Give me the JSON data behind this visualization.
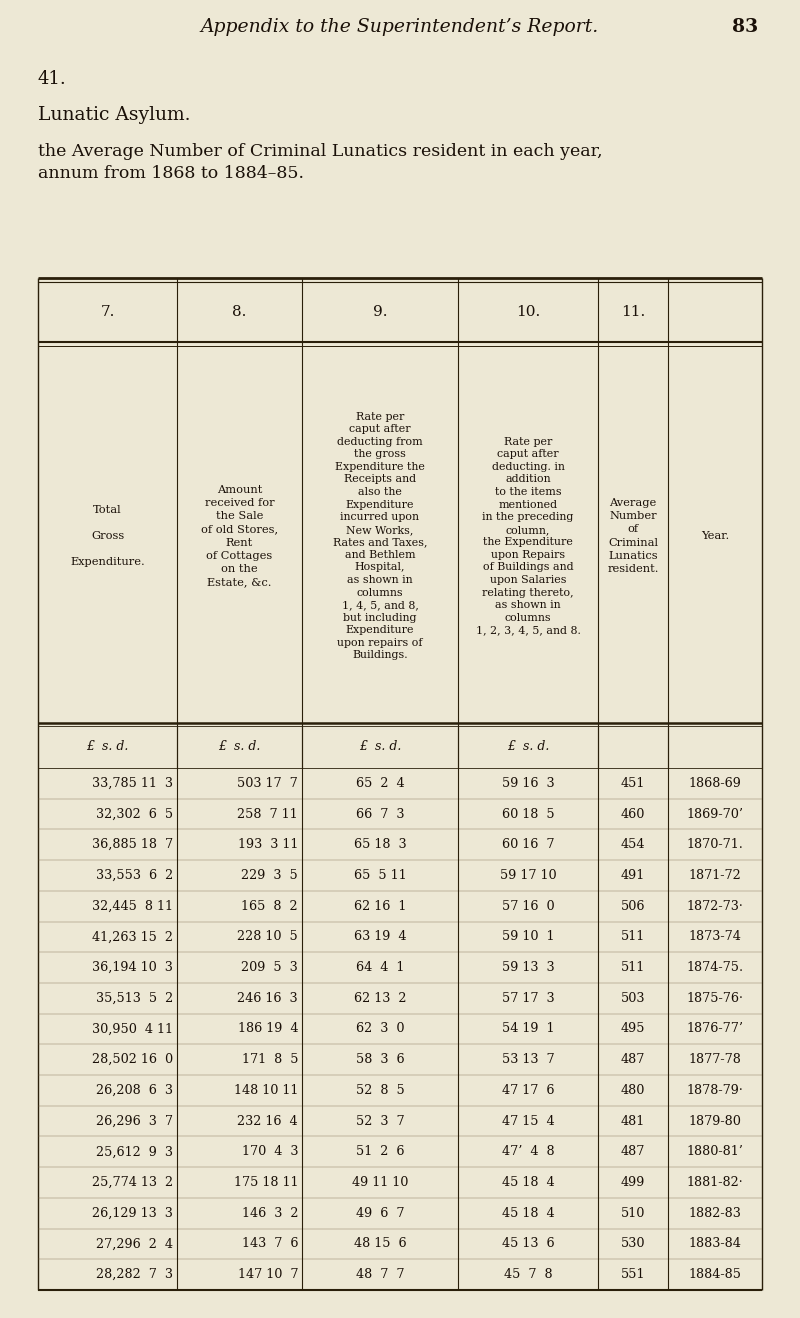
{
  "page_header_italic": "Appendix to the Superintendent’s Report.",
  "page_number": "83",
  "section_number": "41.",
  "section_title": "Lunatic Asylum.",
  "section_subtitle_1": "the Average Number of Criminal Lunatics resident in each year,",
  "section_subtitle_2": "annum from 1868 to 1884–85.",
  "col_nums": [
    "7.",
    "8.",
    "9.",
    "10.",
    "11."
  ],
  "col_header_7": "Total\nGross\nExpenditure.",
  "col_header_8": "Amount\nreceived for\nthe Sale\nof old Stores,\nRent\nof Cottages\non the\nEstate, &c.",
  "col_header_9": "Rate per\ncaput after\ndeducting from\nthe gross\nExpenditure the\nReceipts and\nalso the\nExpenditure\nincurred upon\nNew Works,\nRates and Taxes,\nand Bethlem\nHospital,\nas shown in\ncolumns\n1, 4, 5, and 8,\nbut including\nExpenditure\nupon repairs of\nBuildings.",
  "col_header_10": "Rate per\ncaput after\ndeducting. in\naddition\nto the items\nmentioned\nin the preceding\ncolumn,\nthe Expenditure\nupon Repairs\nof Buildings and\nupon Salaries\nrelating thereto,\nas shown in\ncolumns\n1, 2, 3, 4, 5, and 8.",
  "col_header_11": "Average\nNumber\nof\nCriminal\nLunatics\nresident.",
  "col_header_year": "Year.",
  "data_rows": [
    [
      "33,785 11  3",
      "503 17  7",
      "65  2  4",
      "59 16  3",
      "451",
      "1868-69"
    ],
    [
      "32,302  6  5",
      "258  7 11",
      "66  7  3",
      "60 18  5",
      "460",
      "1869-70’"
    ],
    [
      "36,885 18  7",
      "193  3 11",
      "65 18  3",
      "60 16  7",
      "454",
      "1870-71."
    ],
    [
      "33,553  6  2",
      "229  3  5",
      "65  5 11",
      "59 17 10",
      "491",
      "1871-72"
    ],
    [
      "32,445  8 11",
      "165  8  2",
      "62 16  1",
      "57 16  0",
      "506",
      "1872-73·"
    ],
    [
      "41,263 15  2",
      "228 10  5",
      "63 19  4",
      "59 10  1",
      "511",
      "1873-74"
    ],
    [
      "36,194 10  3",
      "209  5  3",
      "64  4  1",
      "59 13  3",
      "511",
      "1874-75."
    ],
    [
      "35,513  5  2",
      "246 16  3",
      "62 13  2",
      "57 17  3",
      "503",
      "1875-76·"
    ],
    [
      "30,950  4 11",
      "186 19  4",
      "62  3  0",
      "54 19  1",
      "495",
      "1876-77’"
    ],
    [
      "28,502 16  0",
      "171  8  5",
      "58  3  6",
      "53 13  7",
      "487",
      "1877-78"
    ],
    [
      "26,208  6  3",
      "148 10 11",
      "52  8  5",
      "47 17  6",
      "480",
      "1878-79·"
    ],
    [
      "26,296  3  7",
      "232 16  4",
      "52  3  7",
      "47 15  4",
      "481",
      "1879-80"
    ],
    [
      "25,612  9  3",
      "170  4  3",
      "51  2  6",
      "47’  4  8",
      "487",
      "1880-81’"
    ],
    [
      "25,774 13  2",
      "175 18 11",
      "49 11 10",
      "45 18  4",
      "499",
      "1881-82·"
    ],
    [
      "26,129 13  3",
      "146  3  2",
      "49  6  7",
      "45 18  4",
      "510",
      "1882-83"
    ],
    [
      "27,296  2  4",
      "143  7  6",
      "48 15  6",
      "45 13  6",
      "530",
      "1883-84"
    ],
    [
      "28,282  7  3",
      "147 10  7",
      "48  7  7",
      "45  7  8",
      "551",
      "1884-85"
    ]
  ],
  "bg_color": "#ede8d5",
  "text_color": "#1a1008",
  "line_color": "#2a1f0a"
}
